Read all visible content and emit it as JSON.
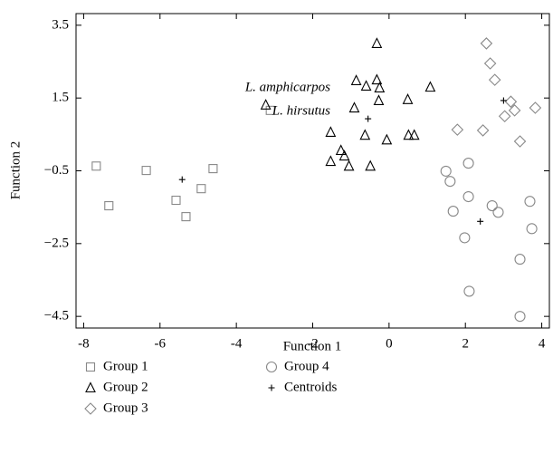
{
  "chart_data": {
    "type": "scatter",
    "xlabel": "Function 1",
    "ylabel": "Function 2",
    "xlim": [
      -8.2,
      4.2
    ],
    "ylim": [
      -4.82,
      3.82
    ],
    "xticks": [
      -8,
      -6,
      -4,
      -2,
      0,
      2,
      4
    ],
    "yticks": [
      {
        "value": -4.5,
        "label": "−4.5"
      },
      {
        "value": -2.5,
        "label": "−2.5"
      },
      {
        "value": -0.5,
        "label": "−0.5"
      },
      1.5,
      3.5
    ],
    "annotations": [
      "L. amphicarpos",
      "L. hirsutus"
    ],
    "series": [
      {
        "name": "Group 1",
        "color": "#888888",
        "marker": "square",
        "x": [
          -7.67,
          -6.36,
          -4.61,
          -4.92,
          -5.58,
          -7.34,
          -5.32,
          -3.11
        ],
        "y": [
          -0.37,
          -0.49,
          -0.44,
          -0.99,
          -1.31,
          -1.46,
          -1.76,
          1.16
        ]
      },
      {
        "name": "Group 2",
        "color": "#000000",
        "marker": "triangle",
        "x": [
          -0.32,
          -0.86,
          -0.6,
          -0.32,
          -0.25,
          -0.91,
          1.08,
          0.49,
          -0.27,
          -1.53,
          -1.26,
          -1.17,
          -1.05,
          -1.53,
          -0.63,
          -0.49,
          -0.06,
          0.51,
          0.66,
          -3.23
        ],
        "y": [
          3.0,
          1.98,
          1.83,
          2.0,
          1.78,
          1.23,
          1.8,
          1.46,
          1.43,
          0.56,
          0.06,
          -0.09,
          -0.37,
          -0.24,
          0.48,
          -0.37,
          0.35,
          0.48,
          0.48,
          1.31
        ]
      },
      {
        "name": "Group 3",
        "color": "#888888",
        "marker": "diamond",
        "x": [
          2.55,
          2.65,
          2.77,
          2.46,
          3.19,
          3.29,
          3.03,
          3.83,
          3.43,
          1.79
        ],
        "y": [
          3.0,
          2.45,
          2.0,
          0.61,
          1.4,
          1.16,
          1.0,
          1.23,
          0.31,
          0.63
        ]
      },
      {
        "name": "Group 4",
        "color": "#888888",
        "marker": "circle",
        "x": [
          1.49,
          1.6,
          1.68,
          2.08,
          2.08,
          2.7,
          2.86,
          3.69,
          3.74,
          1.98,
          3.43,
          2.1,
          3.43
        ],
        "y": [
          -0.51,
          -0.79,
          -1.61,
          -0.29,
          -1.21,
          -1.46,
          -1.64,
          -1.34,
          -2.09,
          -2.34,
          -2.93,
          -3.81,
          -4.5
        ]
      },
      {
        "name": "Centroids",
        "color": "#000000",
        "marker": "plus",
        "x": [
          -5.42,
          -0.55,
          3.0,
          2.39
        ],
        "y": [
          -0.74,
          0.93,
          1.43,
          -1.89
        ]
      }
    ]
  }
}
